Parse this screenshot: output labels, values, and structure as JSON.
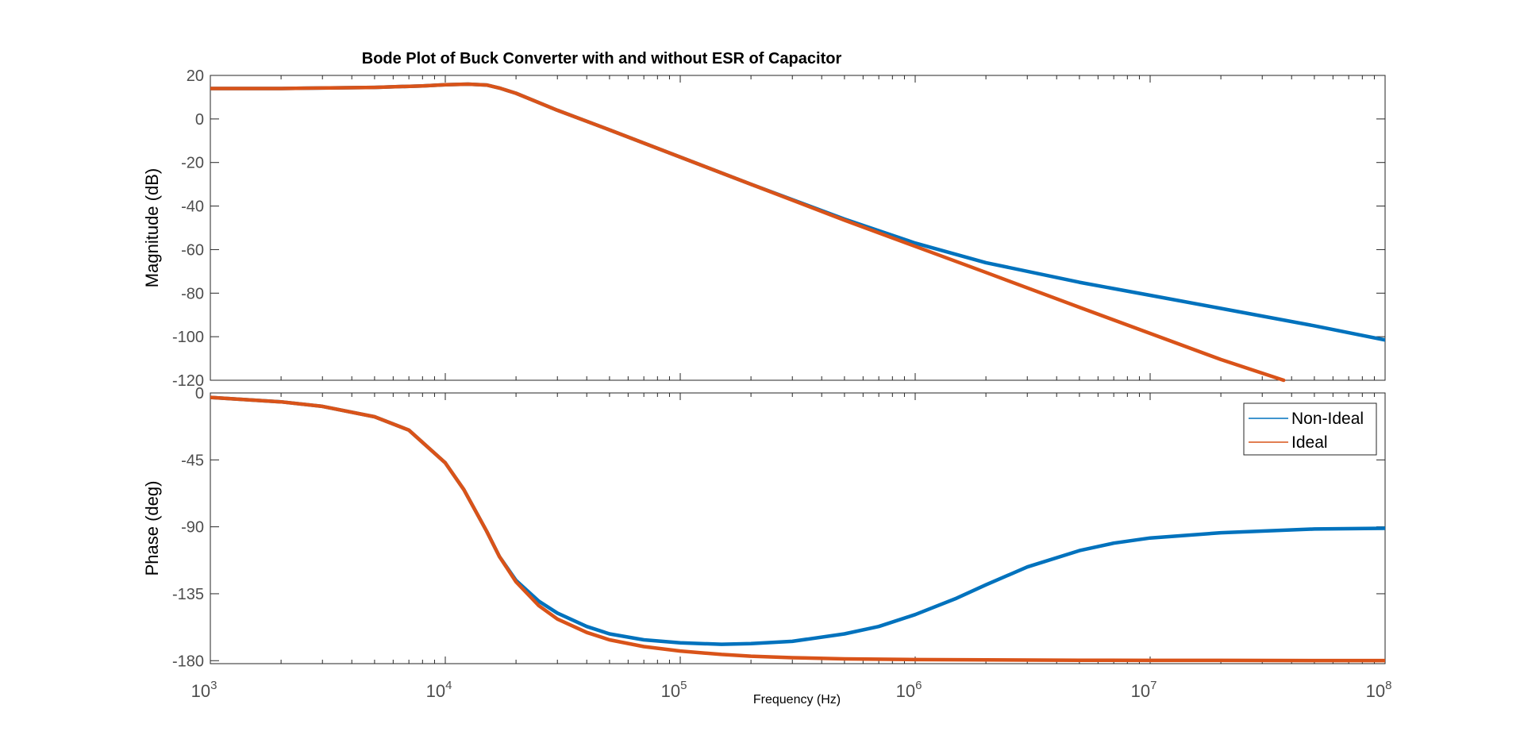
{
  "chart_data": {
    "type": "line",
    "title": "Bode Plot of Buck Converter with and without ESR of Capacitor",
    "xlabel": "Frequency  (Hz)",
    "xscale": "log",
    "xlim": [
      1000,
      100000000
    ],
    "x_ticks": [
      {
        "value": 1000,
        "base": "10",
        "exp": "3"
      },
      {
        "value": 10000,
        "base": "10",
        "exp": "4"
      },
      {
        "value": 100000,
        "base": "10",
        "exp": "5"
      },
      {
        "value": 1000000,
        "base": "10",
        "exp": "6"
      },
      {
        "value": 10000000,
        "base": "10",
        "exp": "7"
      },
      {
        "value": 100000000,
        "base": "10",
        "exp": "8"
      }
    ],
    "legend": {
      "placement": "top-right",
      "panel": "phase"
    },
    "colors": {
      "Non-Ideal": "#0072BD",
      "Ideal": "#D95319"
    },
    "panels": [
      {
        "id": "magnitude",
        "ylabel": "Magnitude (dB)",
        "ylim": [
          -120,
          20
        ],
        "y_ticks": [
          20,
          0,
          -20,
          -40,
          -60,
          -80,
          -100,
          -120
        ],
        "series": [
          {
            "name": "Non-Ideal",
            "x": [
              1000,
              2000,
              5000,
              8000,
              10000,
              12500,
              15000,
              17000,
              20000,
              30000,
              50000,
              100000,
              200000,
              500000,
              1000000,
              2000000,
              5000000,
              10000000,
              20000000,
              50000000,
              100000000
            ],
            "y": [
              14,
              14,
              14.5,
              15.2,
              15.7,
              16,
              15.6,
              14.2,
              11.8,
              4,
              -5,
              -17.5,
              -30,
              -46,
              -57,
              -66,
              -75,
              -81,
              -87,
              -95,
              -101.5
            ]
          },
          {
            "name": "Ideal",
            "x": [
              1000,
              2000,
              5000,
              8000,
              10000,
              12500,
              15000,
              17000,
              20000,
              30000,
              50000,
              100000,
              200000,
              500000,
              1000000,
              2000000,
              5000000,
              10000000,
              20000000,
              37000000
            ],
            "y": [
              14,
              14,
              14.5,
              15.2,
              15.7,
              16,
              15.6,
              14.2,
              11.8,
              4,
              -5,
              -17.5,
              -30,
              -46.5,
              -58.5,
              -70.5,
              -86.5,
              -98.5,
              -110.5,
              -120
            ]
          }
        ]
      },
      {
        "id": "phase",
        "ylabel": "Phase (deg)",
        "ylim": [
          -182,
          0
        ],
        "y_ticks": [
          0,
          -45,
          -90,
          -135,
          -180
        ],
        "series": [
          {
            "name": "Non-Ideal",
            "x": [
              1000,
              2000,
              3000,
              5000,
              7000,
              10000,
              12000,
              15000,
              17000,
              20000,
              25000,
              30000,
              40000,
              50000,
              70000,
              100000,
              150000,
              200000,
              300000,
              500000,
              700000,
              1000000,
              1500000,
              2000000,
              3000000,
              5000000,
              7000000,
              10000000,
              20000000,
              50000000,
              100000000
            ],
            "y": [
              -3,
              -6,
              -9,
              -16,
              -25,
              -47,
              -65,
              -93,
              -110,
              -126,
              -140,
              -148,
              -157,
              -162,
              -166,
              -168,
              -169,
              -168.5,
              -167,
              -162,
              -157,
              -149,
              -138,
              -129,
              -117,
              -106,
              -101,
              -97.5,
              -94,
              -91.5,
              -91
            ]
          },
          {
            "name": "Ideal",
            "x": [
              1000,
              2000,
              3000,
              5000,
              7000,
              10000,
              12000,
              15000,
              17000,
              20000,
              25000,
              30000,
              40000,
              50000,
              70000,
              100000,
              150000,
              200000,
              300000,
              500000,
              1000000,
              2000000,
              5000000,
              10000000,
              20000000,
              50000000,
              100000000
            ],
            "y": [
              -3,
              -6,
              -9,
              -16,
              -25,
              -47,
              -65,
              -93,
              -110,
              -127,
              -143,
              -152,
              -161,
              -166,
              -170.5,
              -173.5,
              -175.8,
              -177,
              -178,
              -178.8,
              -179.3,
              -179.5,
              -179.7,
              -179.8,
              -179.8,
              -179.9,
              -179.9
            ]
          }
        ]
      }
    ]
  }
}
